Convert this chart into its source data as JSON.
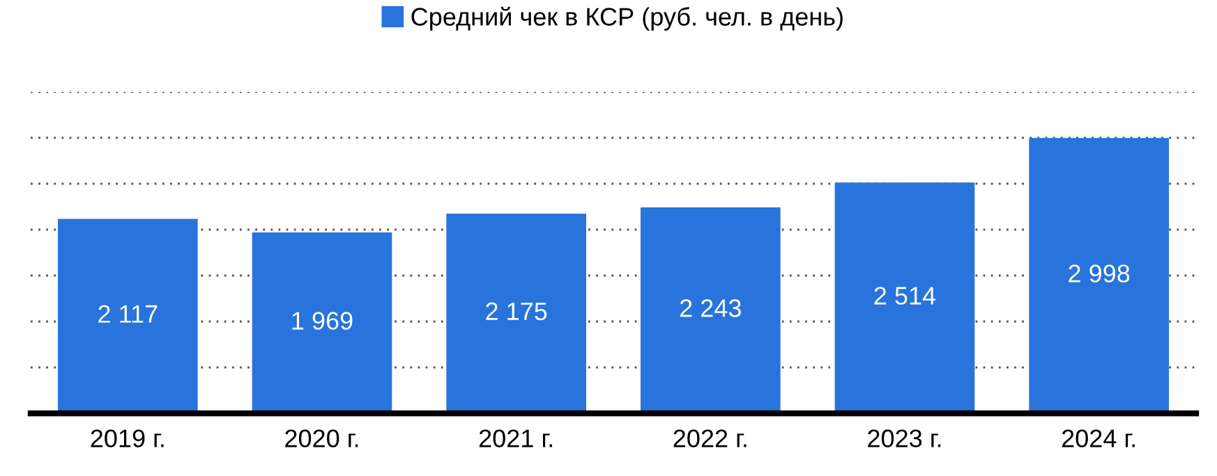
{
  "chart_data": {
    "type": "bar",
    "categories": [
      "2019 г.",
      "2020 г.",
      "2021 г.",
      "2022 г.",
      "2023 г.",
      "2024 г."
    ],
    "series": [
      {
        "name": "Средний чек в КСР (руб. чел. в день)",
        "color": "#2874dc",
        "values": [
          2117,
          1969,
          2175,
          2243,
          2514,
          2998
        ],
        "value_labels": [
          "2 117",
          "1 969",
          "2 175",
          "2 243",
          "2 514",
          "2 998"
        ]
      }
    ],
    "ylim": [
      0,
      3500
    ],
    "yticks": [
      {
        "value": 500,
        "label": null
      },
      {
        "value": 1000,
        "label": null
      },
      {
        "value": 1500,
        "label": null
      },
      {
        "value": 2000,
        "label": null
      },
      {
        "value": 2500,
        "label": null
      },
      {
        "value": 3000,
        "label": null
      },
      {
        "value": 3500,
        "label": null
      }
    ],
    "grid": "y",
    "legend": "top",
    "tick_labels": "x"
  }
}
